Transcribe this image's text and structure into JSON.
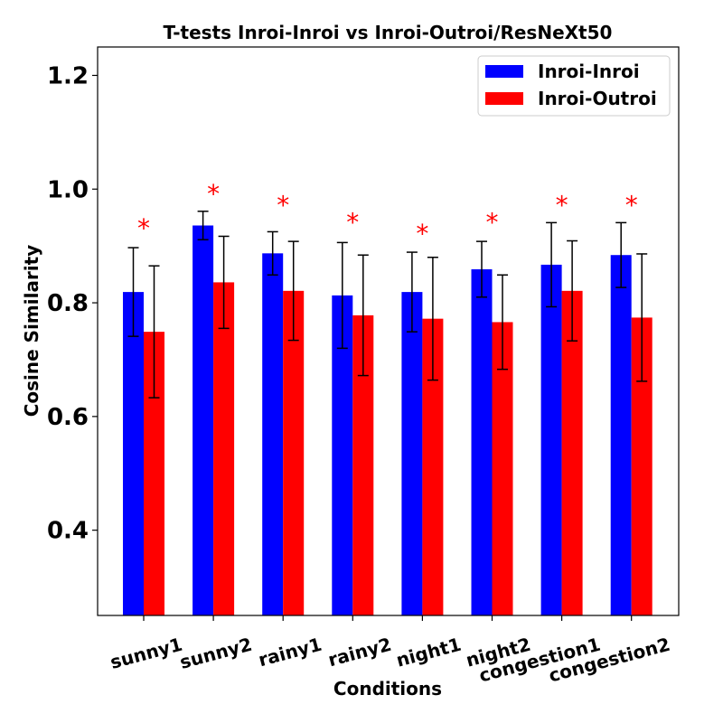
{
  "chart_data": {
    "type": "bar",
    "title": "T-tests Inroi-Inroi vs Inroi-Outroi/ResNeXt50",
    "xlabel": "Conditions",
    "ylabel": "Cosine Similarity",
    "ylim": [
      0.25,
      1.25
    ],
    "yticks": [
      0.4,
      0.6,
      0.8,
      1.0,
      1.2
    ],
    "ytick_labels": [
      "0.4",
      "0.6",
      "0.8",
      "1.0",
      "1.2"
    ],
    "categories": [
      "sunny1",
      "sunny2",
      "rainy1",
      "rainy2",
      "night1",
      "night2",
      "congestion1",
      "congestion2"
    ],
    "series": [
      {
        "name": "Inroi-Inroi",
        "color": "#0000ff",
        "values": [
          0.819,
          0.936,
          0.887,
          0.813,
          0.819,
          0.859,
          0.867,
          0.884
        ],
        "errors": [
          0.078,
          0.025,
          0.038,
          0.093,
          0.07,
          0.049,
          0.074,
          0.057
        ]
      },
      {
        "name": "Inroi-Outroi",
        "color": "#ff0000",
        "values": [
          0.749,
          0.836,
          0.821,
          0.778,
          0.772,
          0.766,
          0.821,
          0.774
        ],
        "errors": [
          0.116,
          0.081,
          0.087,
          0.106,
          0.108,
          0.083,
          0.088,
          0.112
        ]
      }
    ],
    "significance_marker": "*",
    "significance_color": "#ff0000",
    "significance_y": [
      0.945,
      1.005,
      0.985,
      0.955,
      0.935,
      0.955,
      0.985,
      0.985
    ],
    "legend_position": "top-right",
    "grid": false
  }
}
